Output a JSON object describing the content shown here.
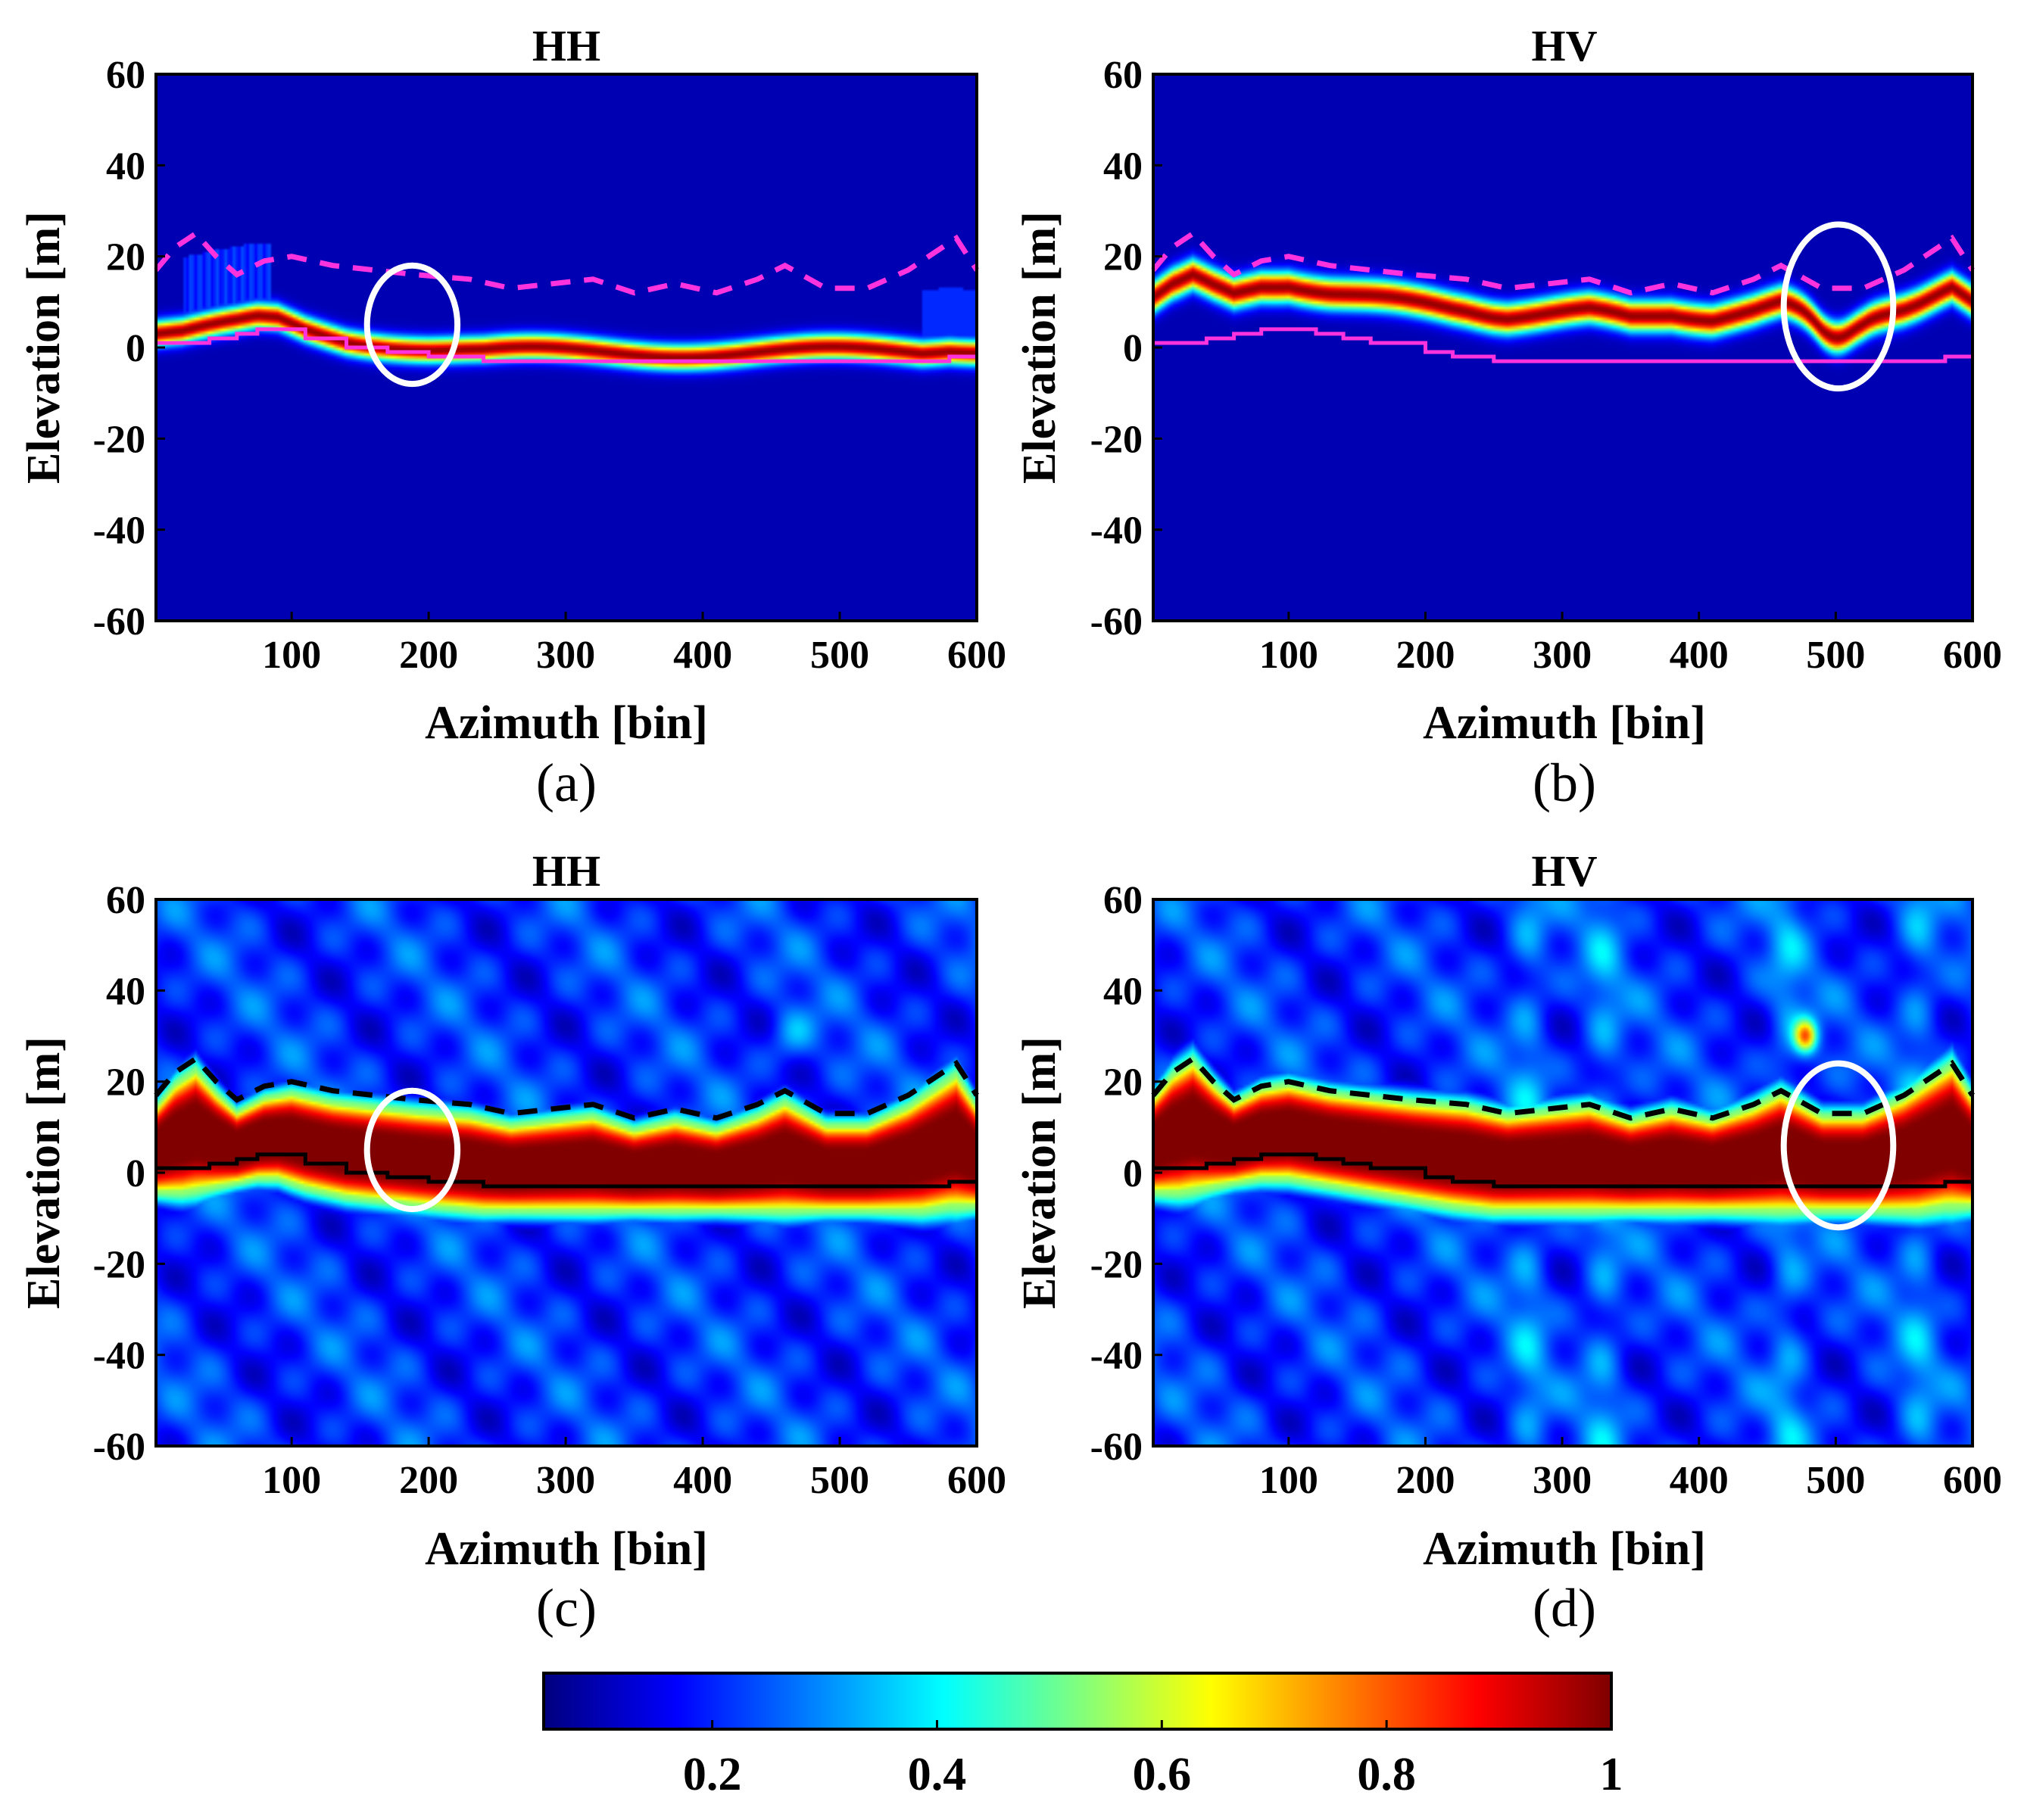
{
  "figure": {
    "colorbar": {
      "colormap": "jet",
      "range": [
        0.05,
        1
      ],
      "ticks": [
        "0.2",
        "0.4",
        "0.6",
        "0.8",
        "1"
      ],
      "tick_values": [
        0.2,
        0.4,
        0.6,
        0.8,
        1.0
      ]
    }
  },
  "chart_data": [
    {
      "id": "a",
      "type": "heatmap",
      "title": "HH",
      "sublabel": "(a)",
      "xlabel": "Azimuth [bin]",
      "ylabel": "Elevation [m]",
      "xlim": [
        1,
        600
      ],
      "ylim": [
        -60,
        60
      ],
      "xticks": [
        "100",
        "200",
        "300",
        "400",
        "500",
        "600"
      ],
      "yticks": [
        "60",
        "40",
        "20",
        "0",
        "-20",
        "-40",
        "-60"
      ],
      "style": "sharp",
      "line_color": "#ff33dd",
      "ground_line": {
        "x": [
          1,
          20,
          40,
          60,
          75,
          90,
          110,
          140,
          170,
          200,
          240,
          300,
          400,
          500,
          560,
          580,
          600
        ],
        "y": [
          1,
          1,
          2,
          3,
          4,
          4,
          2,
          0,
          -1,
          -2,
          -3,
          -3,
          -3,
          -3,
          -3,
          -2,
          -2
        ]
      },
      "top_line": {
        "x": [
          1,
          15,
          30,
          45,
          60,
          80,
          100,
          130,
          160,
          190,
          230,
          260,
          290,
          320,
          350,
          380,
          410,
          440,
          460,
          490,
          520,
          550,
          570,
          585,
          600
        ],
        "y": [
          17,
          22,
          25,
          20,
          16,
          19,
          20,
          18,
          17,
          16,
          15,
          13,
          14,
          15,
          12,
          14,
          12,
          15,
          18,
          13,
          13,
          17,
          21,
          24,
          17
        ]
      },
      "annotation": {
        "shape": "ellipse",
        "center": [
          188,
          5
        ],
        "radius": [
          33,
          13
        ],
        "color": "#ffffff"
      }
    },
    {
      "id": "b",
      "type": "heatmap",
      "title": "HV",
      "sublabel": "(b)",
      "xlabel": "Azimuth [bin]",
      "ylabel": "Elevation [m]",
      "xlim": [
        1,
        600
      ],
      "ylim": [
        -60,
        60
      ],
      "xticks": [
        "100",
        "200",
        "300",
        "400",
        "500",
        "600"
      ],
      "yticks": [
        "60",
        "40",
        "20",
        "0",
        "-20",
        "-40",
        "-60"
      ],
      "style": "sharp_canopy",
      "line_color": "#ff33dd",
      "ground_line": {
        "x": [
          1,
          20,
          40,
          60,
          80,
          100,
          120,
          140,
          160,
          200,
          220,
          250,
          300,
          400,
          500,
          560,
          580,
          600
        ],
        "y": [
          1,
          1,
          2,
          3,
          4,
          4,
          3,
          2,
          1,
          -1,
          -2,
          -3,
          -3,
          -3,
          -3,
          -3,
          -2,
          -2
        ]
      },
      "top_line": {
        "x": [
          1,
          15,
          30,
          45,
          60,
          80,
          100,
          130,
          160,
          190,
          230,
          260,
          290,
          320,
          350,
          380,
          410,
          440,
          460,
          490,
          520,
          550,
          570,
          585,
          600
        ],
        "y": [
          17,
          22,
          25,
          20,
          16,
          19,
          20,
          18,
          17,
          16,
          15,
          13,
          14,
          15,
          12,
          14,
          12,
          15,
          18,
          13,
          13,
          17,
          21,
          24,
          17
        ]
      },
      "annotation": {
        "shape": "ellipse",
        "center": [
          502,
          9
        ],
        "radius": [
          40,
          18
        ],
        "color": "#ffffff"
      }
    },
    {
      "id": "c",
      "type": "heatmap",
      "title": "HH",
      "sublabel": "(c)",
      "xlabel": "Azimuth [bin]",
      "ylabel": "Elevation [m]",
      "xlim": [
        1,
        600
      ],
      "ylim": [
        -60,
        60
      ],
      "xticks": [
        "100",
        "200",
        "300",
        "400",
        "500",
        "600"
      ],
      "yticks": [
        "60",
        "40",
        "20",
        "0",
        "-20",
        "-40",
        "-60"
      ],
      "style": "smooth",
      "line_color": "#000000",
      "ground_line": {
        "x": [
          1,
          20,
          40,
          60,
          75,
          90,
          110,
          140,
          170,
          200,
          240,
          300,
          400,
          500,
          560,
          580,
          600
        ],
        "y": [
          1,
          1,
          2,
          3,
          4,
          4,
          2,
          0,
          -1,
          -2,
          -3,
          -3,
          -3,
          -3,
          -3,
          -2,
          -2
        ]
      },
      "top_line": {
        "x": [
          1,
          15,
          30,
          45,
          60,
          80,
          100,
          130,
          160,
          190,
          230,
          260,
          290,
          320,
          350,
          380,
          410,
          440,
          460,
          490,
          520,
          550,
          570,
          585,
          600
        ],
        "y": [
          17,
          22,
          25,
          20,
          16,
          19,
          20,
          18,
          17,
          16,
          15,
          13,
          14,
          15,
          12,
          14,
          12,
          15,
          18,
          13,
          13,
          17,
          21,
          24,
          17
        ]
      },
      "annotation": {
        "shape": "ellipse",
        "center": [
          188,
          5
        ],
        "radius": [
          33,
          13
        ],
        "color": "#ffffff"
      }
    },
    {
      "id": "d",
      "type": "heatmap",
      "title": "HV",
      "sublabel": "(d)",
      "xlabel": "Azimuth [bin]",
      "ylabel": "Elevation [m]",
      "xlim": [
        1,
        600
      ],
      "ylim": [
        -60,
        60
      ],
      "xticks": [
        "100",
        "200",
        "300",
        "400",
        "500",
        "600"
      ],
      "yticks": [
        "60",
        "40",
        "20",
        "0",
        "-20",
        "-40",
        "-60"
      ],
      "style": "smooth_canopy",
      "line_color": "#000000",
      "ground_line": {
        "x": [
          1,
          20,
          40,
          60,
          80,
          100,
          120,
          140,
          160,
          200,
          220,
          250,
          300,
          400,
          500,
          560,
          580,
          600
        ],
        "y": [
          1,
          1,
          2,
          3,
          4,
          4,
          3,
          2,
          1,
          -1,
          -2,
          -3,
          -3,
          -3,
          -3,
          -3,
          -2,
          -2
        ]
      },
      "top_line": {
        "x": [
          1,
          15,
          30,
          45,
          60,
          80,
          100,
          130,
          160,
          190,
          230,
          260,
          290,
          320,
          350,
          380,
          410,
          440,
          460,
          490,
          520,
          550,
          570,
          585,
          600
        ],
        "y": [
          17,
          22,
          25,
          20,
          16,
          19,
          20,
          18,
          17,
          16,
          15,
          13,
          14,
          15,
          12,
          14,
          12,
          15,
          18,
          13,
          13,
          17,
          21,
          24,
          17
        ]
      },
      "annotation": {
        "shape": "ellipse",
        "center": [
          502,
          6
        ],
        "radius": [
          40,
          18
        ],
        "color": "#ffffff"
      }
    }
  ]
}
